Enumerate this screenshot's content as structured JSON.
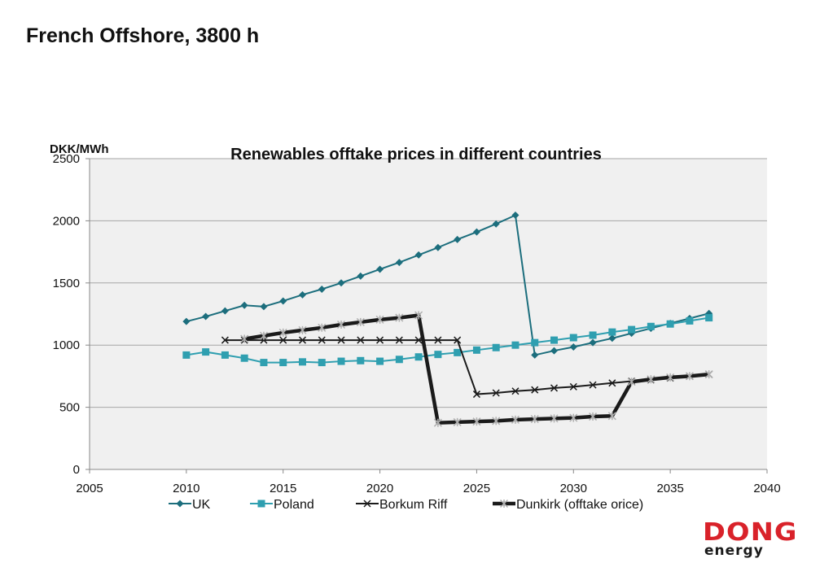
{
  "slide": {
    "title": "French Offshore, 3800 h"
  },
  "logo": {
    "brand": "DONG",
    "sub": "energy",
    "color": "#d9222a"
  },
  "chart_data": {
    "type": "line",
    "title": "Renewables offtake  prices in different countries",
    "ylabel": "DKK/MWh",
    "xlabel": "",
    "xlim": [
      2005,
      2040
    ],
    "ylim": [
      0,
      2500
    ],
    "xticks": [
      2005,
      2010,
      2015,
      2020,
      2025,
      2030,
      2035,
      2040
    ],
    "yticks": [
      0,
      500,
      1000,
      1500,
      2000,
      2500
    ],
    "grid": "horizontal",
    "plot_background": "#f0f0f0",
    "legend_position": "bottom",
    "series": [
      {
        "name": "UK",
        "color": "#1c6e7d",
        "marker": "diamond",
        "line_width": "thin",
        "x": [
          2010,
          2011,
          2012,
          2013,
          2014,
          2015,
          2016,
          2017,
          2018,
          2019,
          2020,
          2021,
          2022,
          2023,
          2024,
          2025,
          2026,
          2027,
          2028,
          2029,
          2030,
          2031,
          2032,
          2033,
          2034,
          2035,
          2036,
          2037
        ],
        "y": [
          1190,
          1230,
          1275,
          1320,
          1310,
          1355,
          1405,
          1450,
          1500,
          1555,
          1610,
          1665,
          1725,
          1785,
          1850,
          1910,
          1975,
          2045,
          920,
          955,
          985,
          1020,
          1055,
          1095,
          1135,
          1175,
          1215,
          1255
        ]
      },
      {
        "name": "Poland",
        "color": "#2f9fb0",
        "marker": "square",
        "line_width": "thin",
        "x": [
          2010,
          2011,
          2012,
          2013,
          2014,
          2015,
          2016,
          2017,
          2018,
          2019,
          2020,
          2021,
          2022,
          2023,
          2024,
          2025,
          2026,
          2027,
          2028,
          2029,
          2030,
          2031,
          2032,
          2033,
          2034,
          2035,
          2036,
          2037
        ],
        "y": [
          920,
          945,
          920,
          895,
          860,
          860,
          865,
          860,
          870,
          875,
          870,
          885,
          905,
          925,
          940,
          960,
          980,
          1000,
          1020,
          1040,
          1060,
          1080,
          1105,
          1125,
          1150,
          1170,
          1195,
          1220
        ]
      },
      {
        "name": "Borkum Riff",
        "color": "#1a1a1a",
        "marker": "x",
        "line_width": "medium",
        "x": [
          2012,
          2013,
          2014,
          2015,
          2016,
          2017,
          2018,
          2019,
          2020,
          2021,
          2022,
          2023,
          2024,
          2025,
          2026,
          2027,
          2028,
          2029,
          2030,
          2031,
          2032,
          2033,
          2034,
          2035,
          2036,
          2037
        ],
        "y": [
          1040,
          1040,
          1040,
          1040,
          1040,
          1040,
          1040,
          1040,
          1040,
          1040,
          1040,
          1040,
          1040,
          605,
          615,
          630,
          640,
          655,
          665,
          680,
          695,
          710,
          720,
          735,
          750,
          765
        ]
      },
      {
        "name": "Dunkirk (offtake orice)",
        "color": "#1a1a1a",
        "marker": "star",
        "marker_color": "#b0b0b0",
        "line_width": "thick",
        "x": [
          2013,
          2014,
          2015,
          2016,
          2017,
          2018,
          2019,
          2020,
          2021,
          2022,
          2023,
          2024,
          2025,
          2026,
          2027,
          2028,
          2029,
          2030,
          2031,
          2032,
          2033,
          2034,
          2035,
          2036,
          2037
        ],
        "y": [
          1050,
          1075,
          1100,
          1120,
          1140,
          1165,
          1185,
          1205,
          1220,
          1240,
          375,
          380,
          385,
          390,
          400,
          405,
          410,
          415,
          425,
          430,
          705,
          725,
          740,
          750,
          765
        ]
      }
    ]
  }
}
